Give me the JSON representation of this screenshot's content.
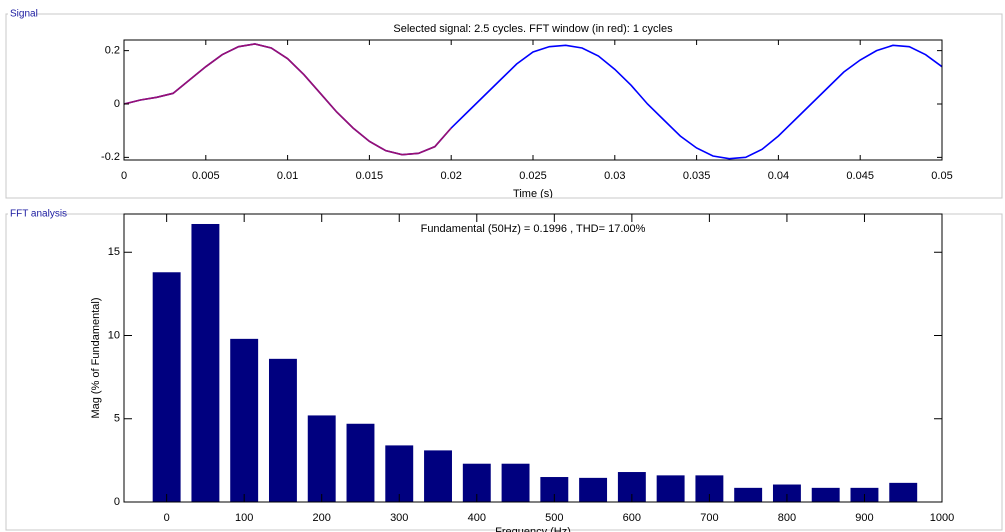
{
  "panels": [
    "Signal",
    "FFT analysis"
  ],
  "chart_data": [
    {
      "type": "line",
      "title": "Selected signal: 2.5 cycles. FFT window (in red): 1 cycles",
      "x_label": "Time (s)",
      "x": [
        0,
        0.001,
        0.002,
        0.003,
        0.004,
        0.005,
        0.006,
        0.007,
        0.008,
        0.009,
        0.01,
        0.011,
        0.012,
        0.013,
        0.014,
        0.015,
        0.016,
        0.017,
        0.018,
        0.019,
        0.02,
        0.021,
        0.022,
        0.023,
        0.024,
        0.025,
        0.026,
        0.027,
        0.028,
        0.029,
        0.03,
        0.031,
        0.032,
        0.033,
        0.034,
        0.035,
        0.036,
        0.037,
        0.038,
        0.039,
        0.04,
        0.041,
        0.042,
        0.043,
        0.044,
        0.045,
        0.046,
        0.047,
        0.048,
        0.049,
        0.05
      ],
      "series": [
        {
          "color": "#0000ff",
          "values": [
            0,
            0.015,
            0.025,
            0.04,
            0.09,
            0.14,
            0.185,
            0.215,
            0.225,
            0.21,
            0.17,
            0.11,
            0.04,
            -0.03,
            -0.09,
            -0.14,
            -0.175,
            -0.19,
            -0.185,
            -0.16,
            -0.09,
            -0.03,
            0.03,
            0.09,
            0.15,
            0.195,
            0.215,
            0.22,
            0.21,
            0.18,
            0.13,
            0.07,
            0,
            -0.06,
            -0.12,
            -0.165,
            -0.195,
            -0.205,
            -0.2,
            -0.17,
            -0.12,
            -0.06,
            0,
            0.06,
            0.12,
            0.165,
            0.2,
            0.22,
            0.215,
            0.185,
            0.14
          ]
        },
        {
          "color": "#9a1070",
          "values": [
            0,
            0.015,
            0.025,
            0.04,
            0.09,
            0.14,
            0.185,
            0.215,
            0.225,
            0.21,
            0.17,
            0.11,
            0.04,
            -0.03,
            -0.09,
            -0.14,
            -0.175,
            -0.19,
            -0.185,
            -0.16,
            -0.09,
            null,
            null,
            null,
            null,
            null,
            null,
            null,
            null,
            null,
            null,
            null,
            null,
            null,
            null,
            null,
            null,
            null,
            null,
            null,
            null,
            null,
            null,
            null,
            null,
            null,
            null,
            null,
            null,
            null,
            null
          ]
        }
      ],
      "xlim": [
        0,
        0.05
      ],
      "ylim": [
        -0.21,
        0.24
      ],
      "xticks": [
        0,
        0.005,
        0.01,
        0.015,
        0.02,
        0.025,
        0.03,
        0.035,
        0.04,
        0.045,
        0.05
      ],
      "yticks": [
        -0.2,
        0,
        0.2
      ]
    },
    {
      "type": "bar",
      "title": "Fundamental (50Hz) = 0.1996 , THD= 17.00%",
      "x_label": "Frequency (Hz)",
      "y_label": "Mag (% of Fundamental)",
      "x": [
        0,
        50,
        100,
        150,
        200,
        250,
        300,
        350,
        400,
        450,
        500,
        550,
        600,
        650,
        700,
        750,
        800,
        850,
        900,
        950
      ],
      "values": [
        13.8,
        16.7,
        9.8,
        8.6,
        5.2,
        4.7,
        3.4,
        3.1,
        2.3,
        2.3,
        1.5,
        1.45,
        1.8,
        1.6,
        1.6,
        0.85,
        1.05,
        0.85,
        0.85,
        1.15
      ],
      "color": "#00007f",
      "xlim": [
        -55,
        1000
      ],
      "ylim": [
        0,
        17.3
      ],
      "xticks": [
        0,
        100,
        200,
        300,
        400,
        500,
        600,
        700,
        800,
        900,
        1000
      ],
      "yticks": [
        0,
        5,
        10,
        15
      ]
    }
  ]
}
